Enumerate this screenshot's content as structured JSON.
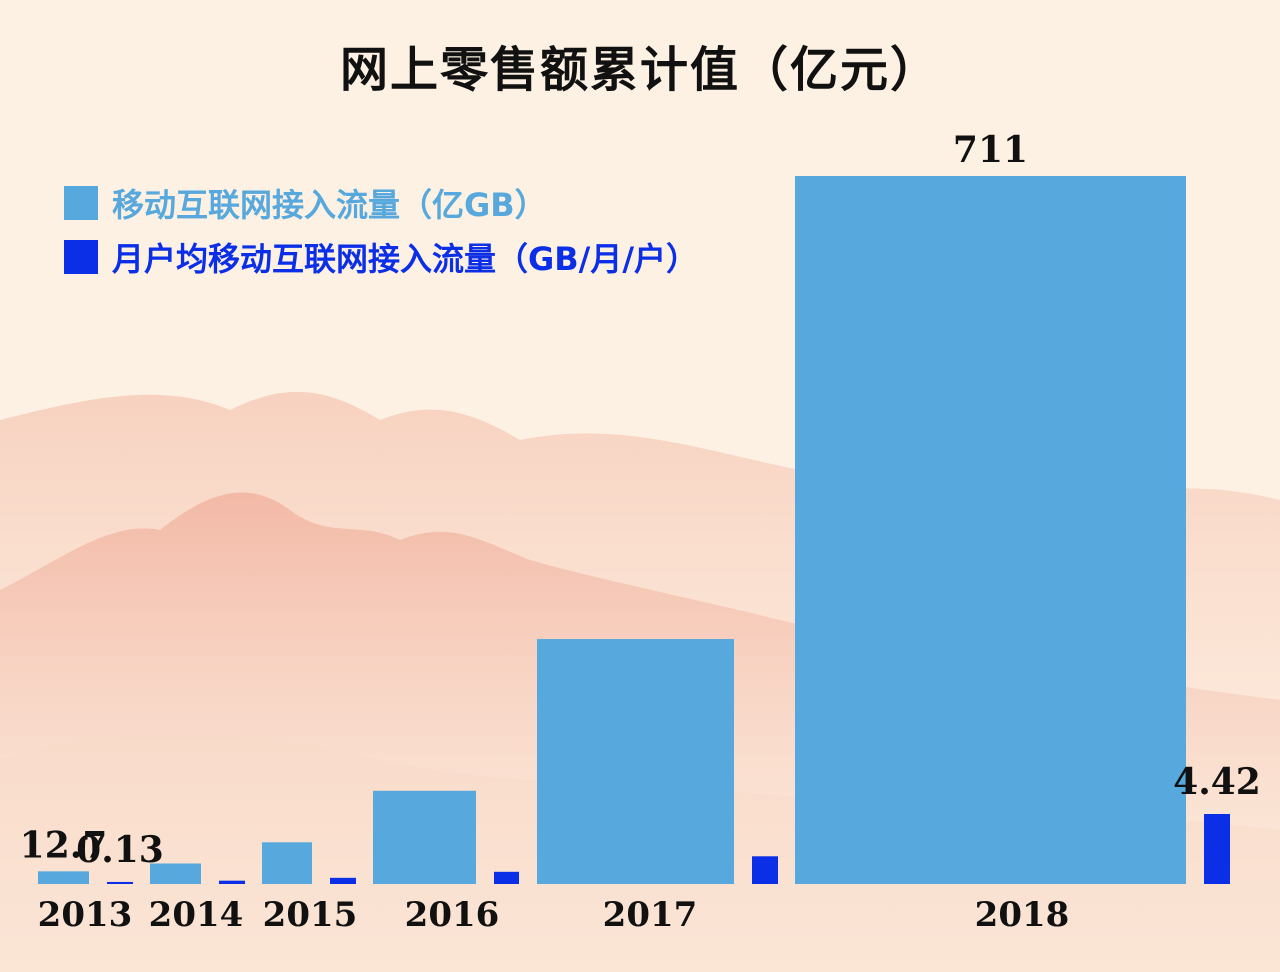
{
  "chart_data": {
    "type": "bar",
    "title": "网上零售额累计值（亿元）",
    "categories": [
      "2013",
      "2014",
      "2015",
      "2016",
      "2017",
      "2018"
    ],
    "series": [
      {
        "name": "移动互联网接入流量（亿GB）",
        "color": "#56a8dd",
        "values": [
          12.7,
          20.6,
          41.9,
          93.6,
          246,
          711
        ],
        "labels": [
          "12.7",
          "",
          "",
          "",
          "",
          "711"
        ]
      },
      {
        "name": "月户均移动互联网接入流量（GB/月/户）",
        "color": "#0b2fe6",
        "values": [
          0.13,
          0.21,
          0.39,
          0.77,
          1.75,
          4.42
        ],
        "labels": [
          "0.13",
          "",
          "",
          "",
          "",
          "4.42"
        ]
      }
    ]
  }
}
